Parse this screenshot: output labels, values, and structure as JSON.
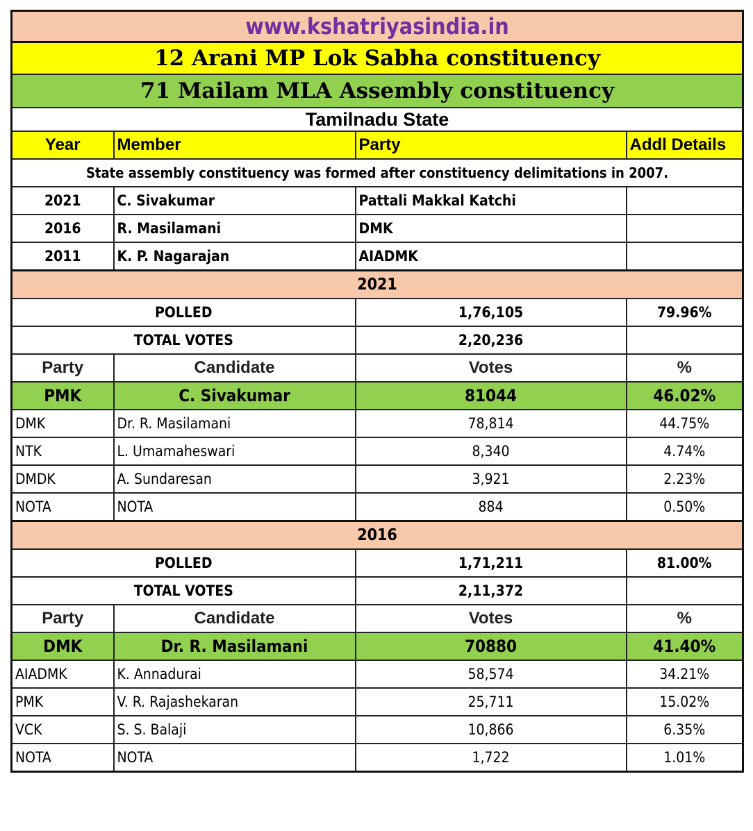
{
  "site": "www.kshatriyasindia.in",
  "lok_sabha": "12 Arani MP Lok Sabha constituency",
  "assembly": "71 Mailam MLA Assembly constituency",
  "state": "Tamilnadu State",
  "members_header": [
    "Year",
    "Member",
    "Party",
    "Addl Details"
  ],
  "note": "State assembly constituency was formed after constituency delimitations in 2007.",
  "members": [
    {
      "year": "2021",
      "member": "C. Sivakumar",
      "party": "Pattali Makkal Katchi",
      "details": ""
    },
    {
      "year": "2016",
      "member": "R. Masilamani",
      "party": "DMK",
      "details": ""
    },
    {
      "year": "2011",
      "member": "K. P. Nagarajan",
      "party": "AIADMK",
      "details": ""
    }
  ],
  "elections": [
    {
      "year": "2021",
      "polled_label": "POLLED",
      "polled": "1,76,105",
      "polled_pct": "79.96%",
      "total_label": "TOTAL VOTES",
      "total": "2,20,236",
      "columns": [
        "Party",
        "Candidate",
        "Votes",
        "%"
      ],
      "winner": {
        "party": "PMK",
        "candidate": "C. Sivakumar",
        "votes": "81044",
        "pct": "46.02%"
      },
      "others": [
        {
          "party": "DMK",
          "candidate": "Dr. R. Masilamani",
          "votes": "78,814",
          "pct": "44.75%"
        },
        {
          "party": "NTK",
          "candidate": "L. Umamaheswari",
          "votes": "8,340",
          "pct": "4.74%"
        },
        {
          "party": "DMDK",
          "candidate": "A. Sundaresan",
          "votes": "3,921",
          "pct": "2.23%"
        },
        {
          "party": "NOTA",
          "candidate": "NOTA",
          "votes": "884",
          "pct": "0.50%"
        }
      ]
    },
    {
      "year": "2016",
      "polled_label": "POLLED",
      "polled": "1,71,211",
      "polled_pct": "81.00%",
      "total_label": "TOTAL VOTES",
      "total": "2,11,372",
      "columns": [
        "Party",
        "Candidate",
        "Votes",
        "%"
      ],
      "winner": {
        "party": "DMK",
        "candidate": "Dr. R. Masilamani",
        "votes": "70880",
        "pct": "41.40%"
      },
      "others": [
        {
          "party": "AIADMK",
          "candidate": "K. Annadurai",
          "votes": "58,574",
          "pct": "34.21%"
        },
        {
          "party": "PMK",
          "candidate": "V. R. Rajashekaran",
          "votes": "25,711",
          "pct": "15.02%"
        },
        {
          "party": "VCK",
          "candidate": "S. S. Balaji",
          "votes": "10,866",
          "pct": "6.35%"
        },
        {
          "party": "NOTA",
          "candidate": "NOTA",
          "votes": "1,722",
          "pct": "1.01%"
        }
      ]
    }
  ]
}
